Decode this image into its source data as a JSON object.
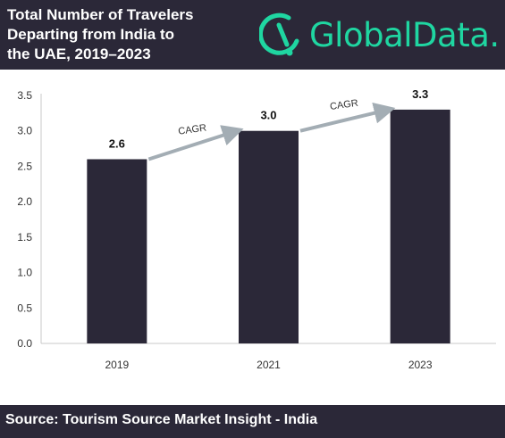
{
  "header": {
    "title_lines": [
      "Total Number of Travelers",
      "Departing from India to",
      "the UAE, 2019–2023"
    ]
  },
  "brand": {
    "logo_text": "GlobalData.",
    "color": "#1fd6a1"
  },
  "colors": {
    "bar": "#2b2838",
    "arrow": "#a3adb4",
    "axis_text": "#333333"
  },
  "chart_data": {
    "type": "bar",
    "categories": [
      "2019",
      "2021",
      "2023"
    ],
    "values": [
      2.6,
      3.0,
      3.3
    ],
    "data_labels": [
      "2.6",
      "3.0",
      "3.3"
    ],
    "ylim": [
      0,
      3.5
    ],
    "yticks": [
      "0.0",
      "0.5",
      "1.0",
      "1.5",
      "2.0",
      "2.5",
      "3.0",
      "3.5"
    ],
    "grid": false,
    "annotations": [
      {
        "text": "CAGR",
        "from": "2019",
        "to": "2021"
      },
      {
        "text": "CAGR",
        "from": "2021",
        "to": "2023"
      }
    ]
  },
  "footer": {
    "source": "Source: Tourism Source Market Insight - India"
  }
}
